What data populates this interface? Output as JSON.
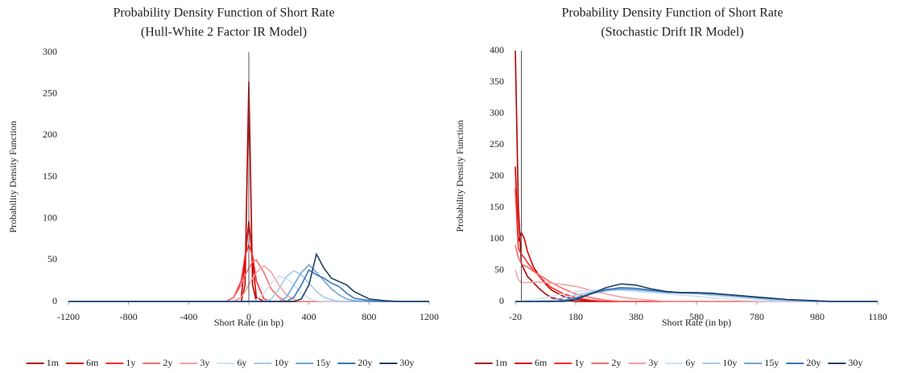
{
  "chart_data": [
    {
      "type": "line",
      "title": "Probability Density Function of Short Rate",
      "subtitle": "(Hull-White 2 Factor IR Model)",
      "x_label": "Short Rate (in bp)",
      "y_label": "Probability Density Function",
      "xlim": [
        -1200,
        1200
      ],
      "xticks": [
        -1200,
        -800,
        -400,
        0,
        400,
        800,
        1200
      ],
      "ylim": [
        0,
        300
      ],
      "yticks": [
        0,
        50,
        100,
        150,
        200,
        250,
        300
      ],
      "grid": false,
      "legend": "bottom",
      "x": [
        -1200,
        -200,
        -150,
        -100,
        -50,
        -25,
        0,
        25,
        50,
        100,
        150,
        200,
        250,
        300,
        350,
        400,
        450,
        500,
        550,
        600,
        650,
        700,
        800,
        900,
        1000,
        1200
      ],
      "series": [
        {
          "name": "1m",
          "color": "#b40000",
          "values": [
            0,
            0,
            0,
            0,
            0,
            20,
            265,
            20,
            0,
            0,
            0,
            0,
            0,
            0,
            0,
            0,
            0,
            0,
            0,
            0,
            0,
            0,
            0,
            0,
            0,
            0
          ]
        },
        {
          "name": "6m",
          "color": "#d40000",
          "values": [
            0,
            0,
            0,
            0,
            5,
            50,
            97,
            50,
            5,
            0,
            0,
            0,
            0,
            0,
            0,
            0,
            0,
            0,
            0,
            0,
            0,
            0,
            0,
            0,
            0,
            0
          ]
        },
        {
          "name": "1y",
          "color": "#ff2a2a",
          "values": [
            0,
            0,
            0,
            5,
            25,
            55,
            68,
            55,
            25,
            3,
            0,
            0,
            0,
            0,
            0,
            0,
            0,
            0,
            0,
            0,
            0,
            0,
            0,
            0,
            0,
            0
          ]
        },
        {
          "name": "2y",
          "color": "#ff6b6b",
          "values": [
            0,
            0,
            0,
            5,
            20,
            32,
            40,
            48,
            50,
            35,
            15,
            5,
            0,
            0,
            0,
            0,
            0,
            0,
            0,
            0,
            0,
            0,
            0,
            0,
            0,
            0
          ]
        },
        {
          "name": "3y",
          "color": "#f4a3a3",
          "values": [
            0,
            0,
            0,
            0,
            5,
            12,
            20,
            28,
            35,
            43,
            35,
            20,
            8,
            2,
            0,
            0,
            0,
            0,
            0,
            0,
            0,
            0,
            0,
            0,
            0,
            0
          ]
        },
        {
          "name": "6y",
          "color": "#cfe2f3",
          "values": [
            0,
            0,
            0,
            0,
            0,
            0,
            0,
            1,
            2,
            10,
            22,
            30,
            28,
            20,
            10,
            4,
            1,
            0,
            0,
            0,
            0,
            0,
            0,
            0,
            0,
            0
          ]
        },
        {
          "name": "10y",
          "color": "#a8c8e8",
          "values": [
            0,
            0,
            0,
            0,
            0,
            0,
            0,
            0,
            0,
            0,
            3,
            15,
            30,
            37,
            32,
            22,
            12,
            5,
            2,
            0,
            0,
            0,
            0,
            0,
            0,
            0
          ]
        },
        {
          "name": "15y",
          "color": "#6fa4d8",
          "values": [
            0,
            0,
            0,
            0,
            0,
            0,
            0,
            0,
            0,
            0,
            0,
            0,
            5,
            20,
            35,
            44,
            35,
            25,
            15,
            8,
            3,
            1,
            0,
            0,
            0,
            0
          ]
        },
        {
          "name": "20y",
          "color": "#3a75b8",
          "values": [
            0,
            0,
            0,
            0,
            0,
            0,
            0,
            0,
            0,
            0,
            0,
            0,
            0,
            5,
            20,
            38,
            32,
            28,
            22,
            18,
            10,
            4,
            1,
            0,
            0,
            0
          ]
        },
        {
          "name": "30y",
          "color": "#1f3f66",
          "values": [
            0,
            0,
            0,
            0,
            0,
            0,
            0,
            0,
            0,
            0,
            0,
            0,
            0,
            0,
            3,
            20,
            57,
            40,
            28,
            24,
            20,
            12,
            3,
            1,
            0,
            0
          ]
        }
      ]
    },
    {
      "type": "line",
      "title": "Probability Density Function of Short Rate",
      "subtitle": "(Stochastic Drift IR Model)",
      "x_label": "Short Rate (in bp)",
      "y_label": "Probability Density Function",
      "xlim": [
        -20,
        1180
      ],
      "xticks": [
        -20,
        180,
        380,
        580,
        780,
        980,
        1180
      ],
      "ylim": [
        0,
        400
      ],
      "yticks": [
        0,
        50,
        100,
        150,
        200,
        250,
        300,
        350,
        400
      ],
      "grid": false,
      "legend": "bottom",
      "x": [
        -20,
        -10,
        0,
        10,
        20,
        40,
        60,
        80,
        100,
        140,
        180,
        230,
        280,
        330,
        380,
        430,
        480,
        530,
        580,
        630,
        680,
        730,
        780,
        830,
        880,
        930,
        980,
        1030,
        1080,
        1180
      ],
      "series": [
        {
          "name": "1m",
          "color": "#b40000",
          "values": [
            400,
            150,
            60,
            50,
            40,
            30,
            20,
            12,
            6,
            2,
            0,
            0,
            0,
            0,
            0,
            0,
            0,
            0,
            0,
            0,
            0,
            0,
            0,
            0,
            0,
            0,
            0,
            0,
            0,
            0
          ]
        },
        {
          "name": "6m",
          "color": "#d40000",
          "values": [
            215,
            95,
            110,
            100,
            80,
            55,
            40,
            28,
            18,
            8,
            3,
            1,
            0,
            0,
            0,
            0,
            0,
            0,
            0,
            0,
            0,
            0,
            0,
            0,
            0,
            0,
            0,
            0,
            0,
            0
          ]
        },
        {
          "name": "1y",
          "color": "#ff2a2a",
          "values": [
            180,
            85,
            75,
            70,
            62,
            50,
            40,
            30,
            22,
            12,
            6,
            2,
            0,
            0,
            0,
            0,
            0,
            0,
            0,
            0,
            0,
            0,
            0,
            0,
            0,
            0,
            0,
            0,
            0,
            0
          ]
        },
        {
          "name": "2y",
          "color": "#ff6b6b",
          "values": [
            90,
            70,
            60,
            57,
            55,
            48,
            42,
            36,
            30,
            20,
            12,
            6,
            2,
            0,
            0,
            0,
            0,
            0,
            0,
            0,
            0,
            0,
            0,
            0,
            0,
            0,
            0,
            0,
            0,
            0
          ]
        },
        {
          "name": "3y",
          "color": "#f4a3a3",
          "values": [
            50,
            35,
            30,
            30,
            30,
            31,
            31,
            30,
            29,
            27,
            24,
            18,
            12,
            7,
            4,
            2,
            0,
            0,
            0,
            0,
            0,
            0,
            0,
            0,
            0,
            0,
            0,
            0,
            0,
            0
          ]
        },
        {
          "name": "6y",
          "color": "#cfe2f3",
          "values": [
            0,
            0,
            0,
            1,
            1,
            3,
            5,
            6,
            8,
            12,
            16,
            18,
            19,
            18,
            16,
            14,
            12,
            10,
            8,
            6,
            4,
            2,
            1,
            0,
            0,
            0,
            0,
            0,
            0,
            0
          ]
        },
        {
          "name": "10y",
          "color": "#a8c8e8",
          "values": [
            0,
            0,
            0,
            0,
            0,
            0,
            1,
            1,
            2,
            6,
            10,
            15,
            18,
            19,
            18,
            16,
            14,
            13,
            12,
            10,
            8,
            6,
            4,
            2,
            1,
            0,
            0,
            0,
            0,
            0
          ]
        },
        {
          "name": "15y",
          "color": "#6fa4d8",
          "values": [
            0,
            0,
            0,
            0,
            0,
            0,
            0,
            0,
            0,
            2,
            6,
            12,
            17,
            20,
            19,
            17,
            15,
            14,
            13,
            12,
            10,
            8,
            6,
            4,
            3,
            1,
            0,
            0,
            0,
            0
          ]
        },
        {
          "name": "20y",
          "color": "#3a75b8",
          "values": [
            0,
            0,
            0,
            0,
            0,
            0,
            0,
            0,
            0,
            1,
            5,
            13,
            19,
            22,
            21,
            18,
            15,
            14,
            14,
            13,
            11,
            9,
            7,
            5,
            3,
            2,
            1,
            0,
            0,
            0
          ]
        },
        {
          "name": "30y",
          "color": "#1f3f66",
          "values": [
            0,
            0,
            0,
            0,
            0,
            0,
            0,
            0,
            0,
            0,
            3,
            12,
            22,
            28,
            26,
            20,
            16,
            14,
            14,
            13,
            11,
            9,
            7,
            5,
            3,
            2,
            1,
            0,
            0,
            0
          ]
        }
      ]
    }
  ]
}
